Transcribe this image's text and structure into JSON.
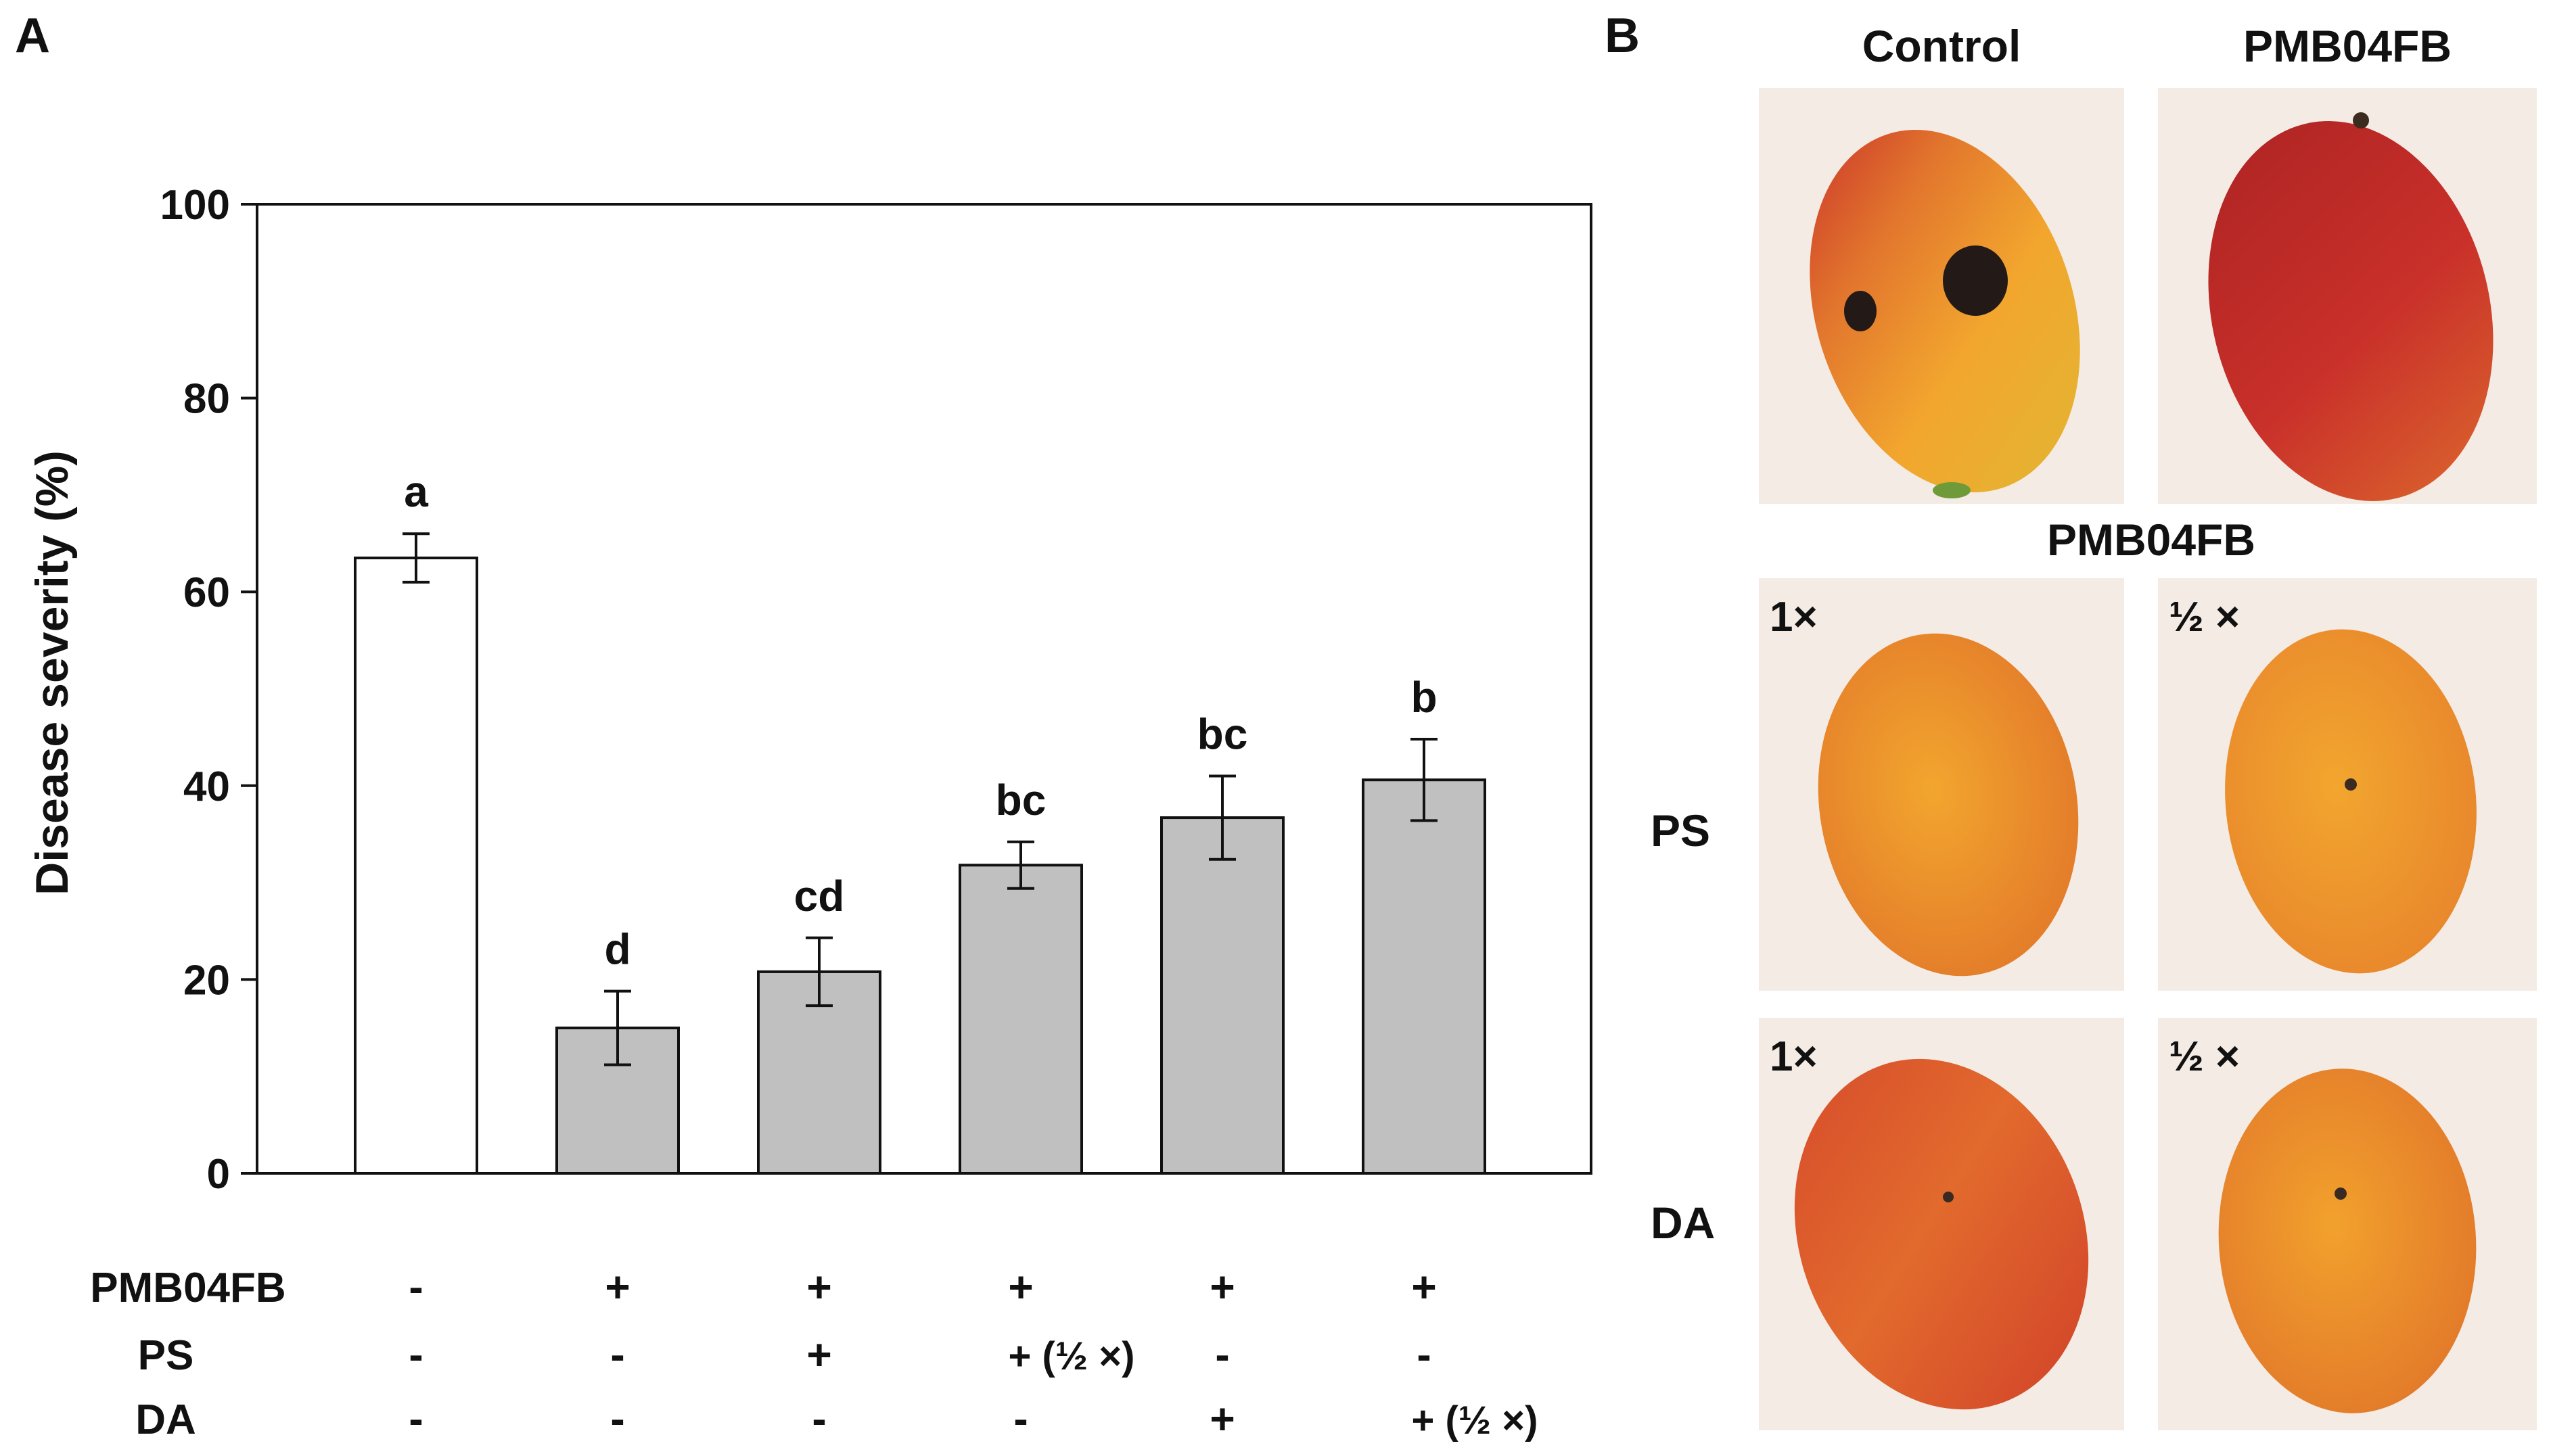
{
  "panel_a_label": "A",
  "panel_b_label": "B",
  "chart_data": {
    "type": "bar",
    "title": "",
    "xlabel": "",
    "ylabel": "Disease severity (%)",
    "ylim": [
      0,
      100
    ],
    "yticks": [
      0,
      20,
      40,
      60,
      80,
      100
    ],
    "grid": false,
    "categories": [
      "Control",
      "PMB04FB",
      "PMB04FB + PS",
      "PMB04FB + PS (½ ×)",
      "PMB04FB + DA",
      "PMB04FB + DA (½ ×)"
    ],
    "values": [
      63.5,
      15,
      20.8,
      31.8,
      36.7,
      40.6
    ],
    "errors": [
      2.5,
      3.8,
      3.5,
      2.4,
      4.3,
      4.2
    ],
    "significance_letters": [
      "a",
      "d",
      "cd",
      "bc",
      "bc",
      "b"
    ],
    "bar_colors": [
      "#ffffff",
      "#c0c0c0",
      "#c0c0c0",
      "#c0c0c0",
      "#c0c0c0",
      "#c0c0c0"
    ],
    "treatment_table": [
      {
        "label": "PMB04FB",
        "marks": [
          "-",
          "+",
          "+",
          "+",
          "+",
          "+"
        ]
      },
      {
        "label": "PS",
        "marks": [
          "-",
          "-",
          "+",
          "+ (½ ×)",
          "-",
          "-"
        ]
      },
      {
        "label": "DA",
        "marks": [
          "-",
          "-",
          "-",
          "-",
          "+",
          "+ (½ ×)"
        ]
      }
    ]
  },
  "photos": {
    "header_control": "Control",
    "header_pmb": "PMB04FB",
    "header_pmb_middle": "PMB04FB",
    "row_ps": "PS",
    "row_da": "DA",
    "dose_full": "1×",
    "dose_half": "½ ×",
    "colors": {
      "background": "#f4ebe4",
      "mango_yellow": "#f2a62e",
      "mango_red": "#c9302a",
      "mango_orange": "#e8792c",
      "lesion": "#231a18"
    }
  }
}
